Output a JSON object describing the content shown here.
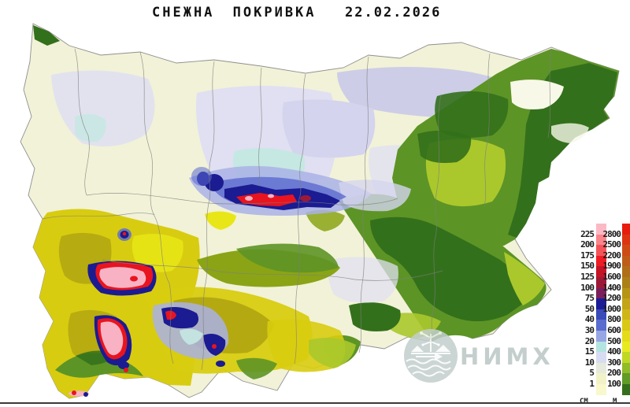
{
  "title": "СНЕЖНА ПОКРИВКА",
  "date": "22.02.2026",
  "watermark": {
    "org": "НИМХ"
  },
  "legend": {
    "snow_depth": {
      "unit": "CM",
      "boundaries": [
        "225",
        "200",
        "175",
        "150",
        "125",
        "100",
        "75",
        "50",
        "40",
        "30",
        "20",
        "15",
        "10",
        "5",
        "1"
      ],
      "colors": [
        "#fbb9c5",
        "#f9858d",
        "#f4555a",
        "#ee1c24",
        "#c41425",
        "#9c1a38",
        "#7a1f5c",
        "#1c1c96",
        "#3a4ab8",
        "#5a6cce",
        "#98a6e4",
        "#b4e4e0",
        "#d8dcf2",
        "#e6eadc",
        "#f2f2c8",
        "#f8f8cc"
      ]
    },
    "elevation": {
      "unit": "M",
      "boundaries": [
        "2800",
        "2500",
        "2200",
        "1900",
        "1600",
        "1400",
        "1200",
        "1000",
        "800",
        "600",
        "500",
        "400",
        "300",
        "200",
        "100"
      ],
      "colors": [
        "#e81c0c",
        "#dd3512",
        "#cf4b16",
        "#bf5d18",
        "#b06e18",
        "#ab8016",
        "#b69416",
        "#c2a416",
        "#ceb616",
        "#dac816",
        "#e4dc18",
        "#e8ea20",
        "#c0d822",
        "#90bc28",
        "#619c26",
        "#356f1c"
      ]
    }
  },
  "palette": {
    "plain": "#f2f2d8",
    "plain2": "#f8f8e8",
    "lav1": "#c9c9e9",
    "lav2": "#e0e0f2",
    "lav3": "#d4d4ee",
    "cyan1": "#c5e8e2",
    "blueL": "#a9b2e6",
    "blueM": "#5a6ace",
    "navy": "#1b1b92",
    "redS": "#e8141f",
    "pink": "#f9b2c4",
    "maroon": "#9c1a38",
    "greenD": "#33701b",
    "greenM": "#5d9426",
    "greenY": "#aac82c",
    "oliveG": "#8aa416",
    "yellow": "#d8cc10",
    "yellowB": "#e8e616",
    "olive": "#b0a412",
    "wm": "#c3cecd"
  }
}
